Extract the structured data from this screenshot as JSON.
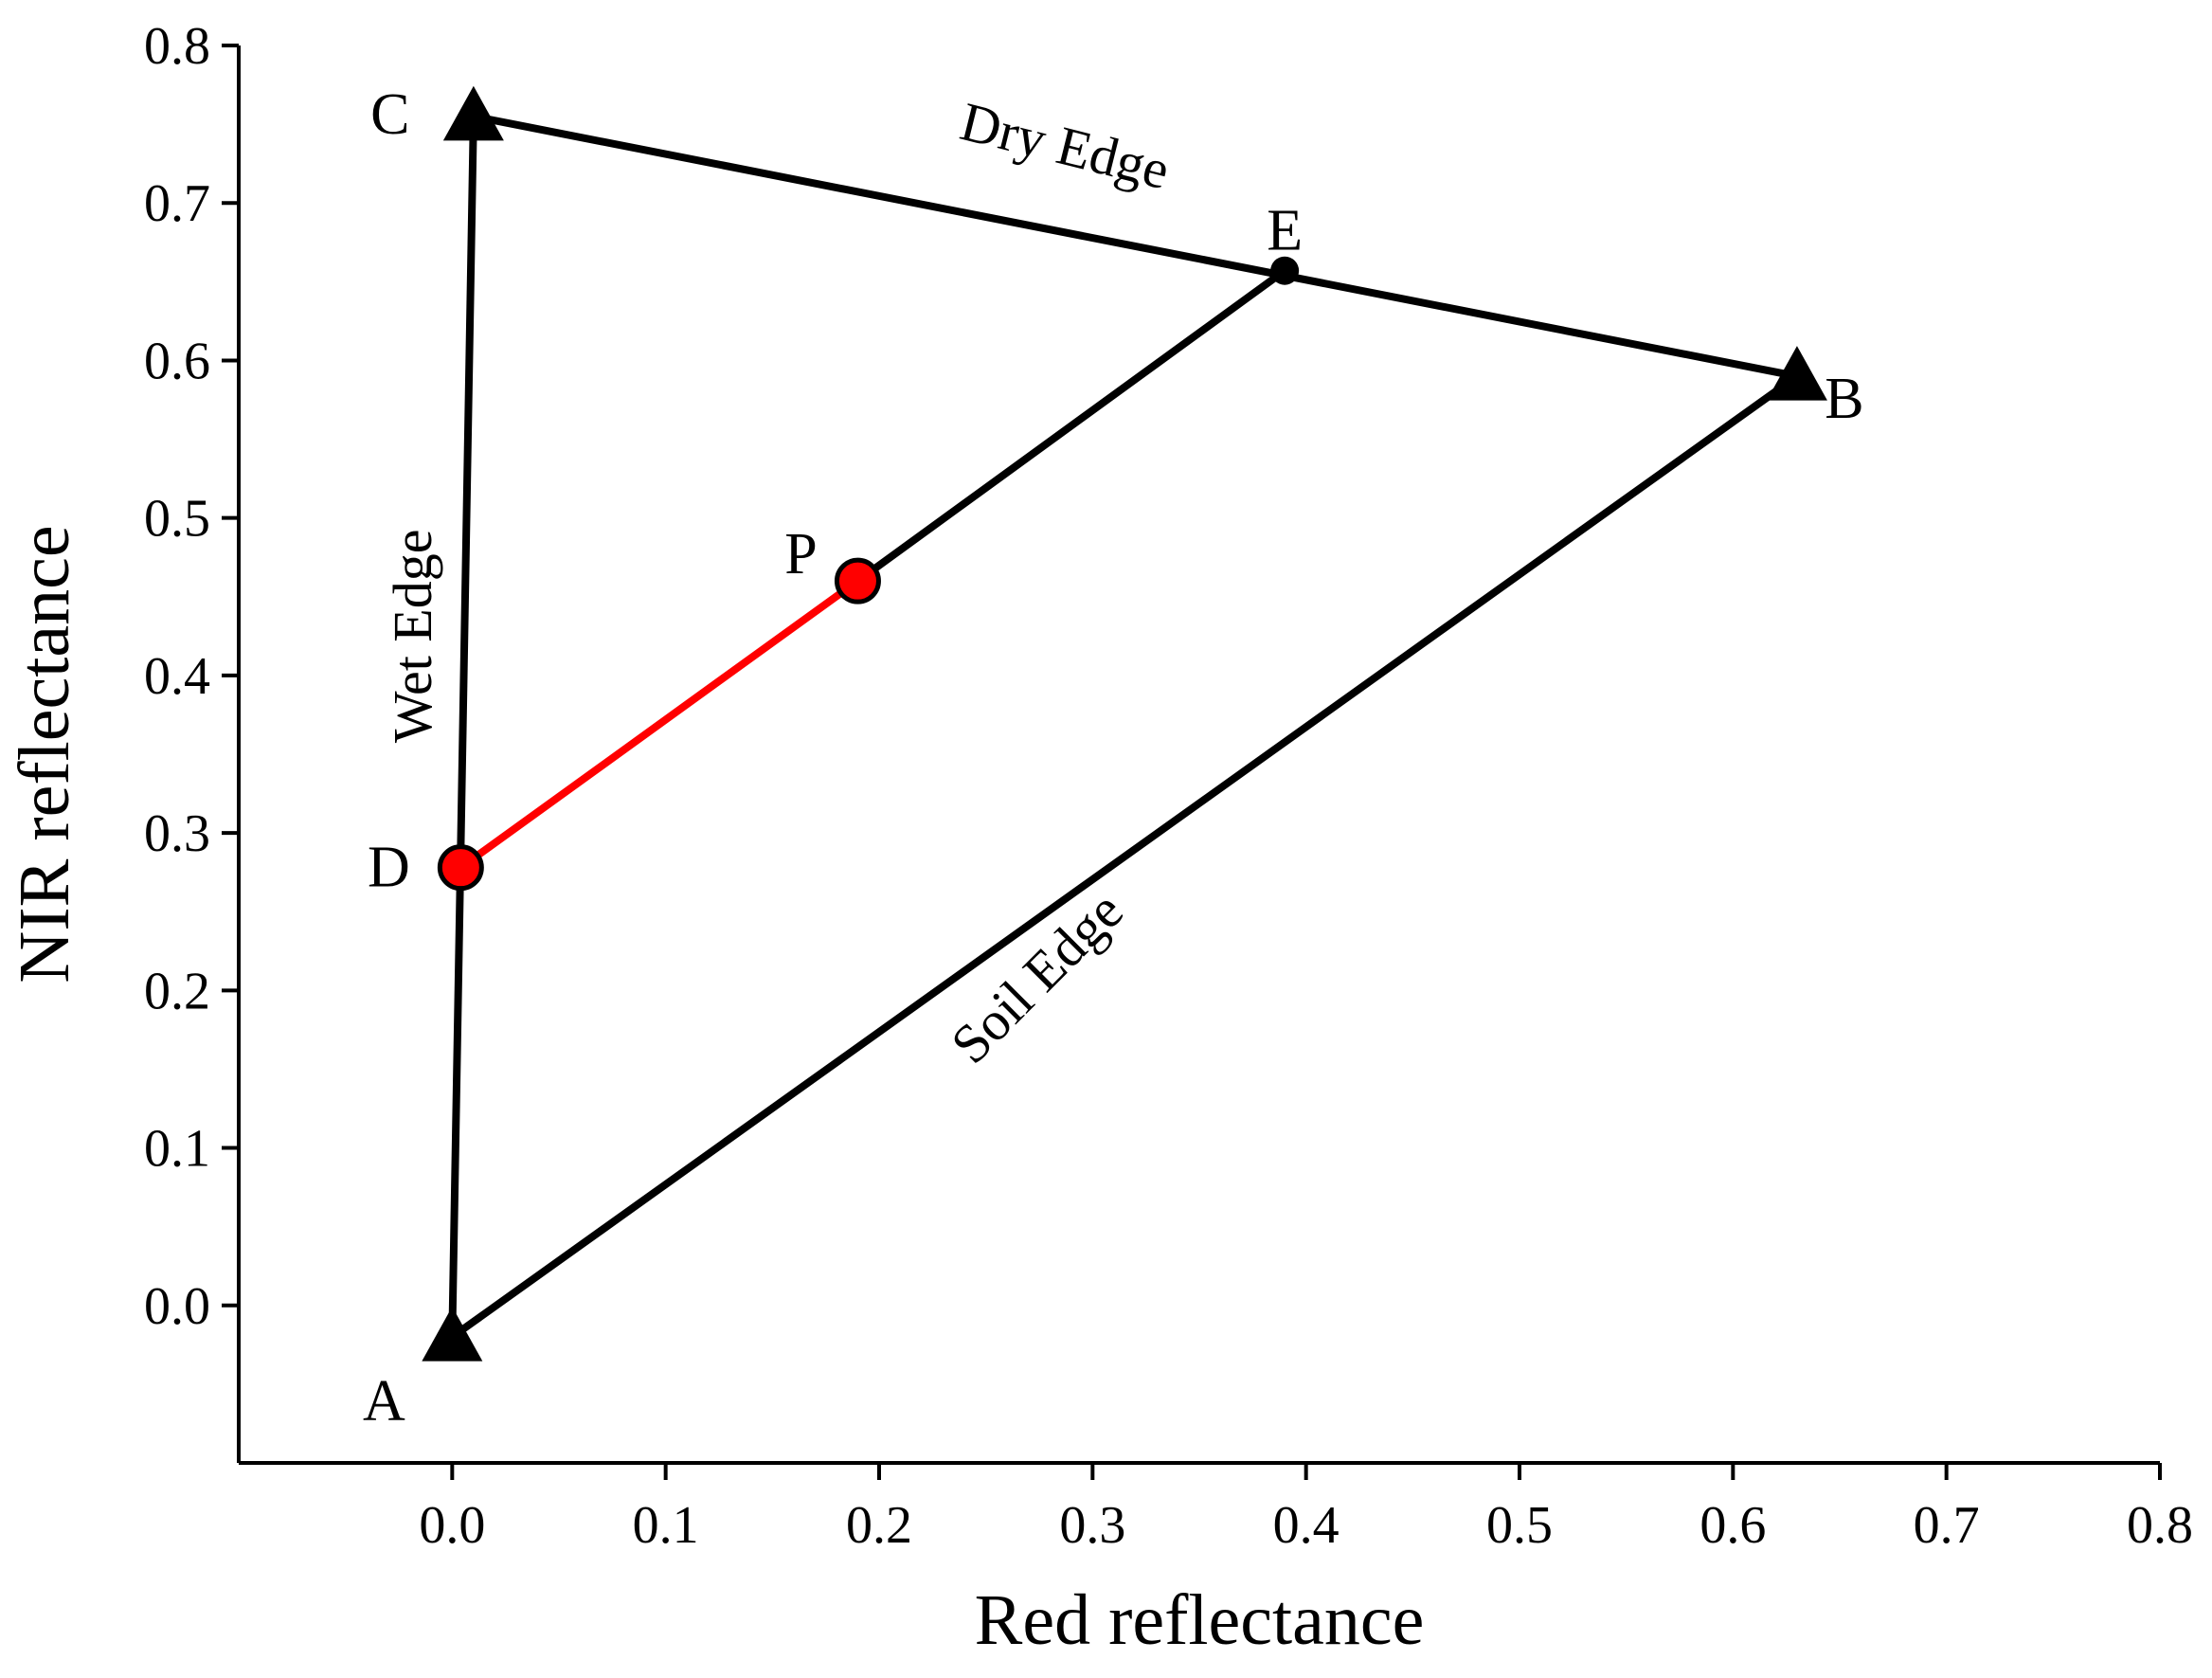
{
  "chart_data": {
    "type": "scatter",
    "title": "",
    "xlabel": "Red reflectance",
    "ylabel": "NIR reflectance",
    "xlim": [
      -0.1,
      0.8
    ],
    "ylim": [
      -0.1,
      0.8
    ],
    "xticks": [
      0.0,
      0.1,
      0.2,
      0.3,
      0.4,
      0.5,
      0.6,
      0.7,
      0.8
    ],
    "yticks": [
      0.0,
      0.1,
      0.2,
      0.3,
      0.4,
      0.5,
      0.6,
      0.7,
      0.8
    ],
    "xtick_labels": [
      "0.0",
      "0.1",
      "0.2",
      "0.3",
      "0.4",
      "0.5",
      "0.6",
      "0.7",
      "0.8"
    ],
    "ytick_labels": [
      "0.0",
      "0.1",
      "0.2",
      "0.3",
      "0.4",
      "0.5",
      "0.6",
      "0.7",
      "0.8"
    ],
    "grid": false,
    "legend": "none",
    "points": [
      {
        "label": "A",
        "x": 0.0,
        "y": -0.02,
        "marker": "triangle",
        "color": "#000000"
      },
      {
        "label": "B",
        "x": 0.63,
        "y": 0.59,
        "marker": "triangle",
        "color": "#000000"
      },
      {
        "label": "C",
        "x": 0.01,
        "y": 0.755,
        "marker": "triangle",
        "color": "#000000"
      },
      {
        "label": "D",
        "x": 0.004,
        "y": 0.278,
        "marker": "circle",
        "color": "#ff0000"
      },
      {
        "label": "E",
        "x": 0.39,
        "y": 0.657,
        "marker": "dot",
        "color": "#000000"
      },
      {
        "label": "P",
        "x": 0.19,
        "y": 0.46,
        "marker": "circle",
        "color": "#ff0000"
      }
    ],
    "segments": [
      {
        "from": "A",
        "to": "C",
        "color": "#000000"
      },
      {
        "from": "C",
        "to": "B",
        "color": "#000000"
      },
      {
        "from": "A",
        "to": "B",
        "color": "#000000"
      },
      {
        "from": "P",
        "to": "E",
        "color": "#000000"
      },
      {
        "from": "D",
        "to": "P",
        "color": "#ff0000"
      }
    ],
    "annotations": [
      {
        "text": "Dry Edge",
        "x": 0.285,
        "y": 0.725,
        "angle": 14
      },
      {
        "text": "Wet Edge",
        "x": -0.01,
        "y": 0.425,
        "angle": -90
      },
      {
        "text": "Soil Edge",
        "x": 0.28,
        "y": 0.2,
        "angle": -45
      }
    ]
  }
}
